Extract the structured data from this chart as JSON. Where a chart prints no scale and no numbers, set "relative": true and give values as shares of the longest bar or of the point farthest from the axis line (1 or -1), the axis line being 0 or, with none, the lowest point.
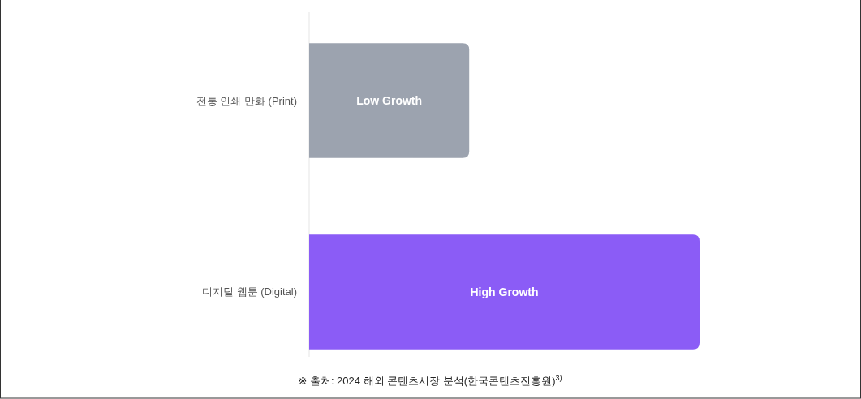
{
  "chart_data": {
    "type": "bar",
    "orientation": "horizontal",
    "relative": true,
    "categories": [
      "전통 인쇄 만화 (Print)",
      "디지털 웹툰 (Digital)"
    ],
    "values": [
      0.41,
      1
    ],
    "colors": [
      "#9ca3af",
      "#8b5cf6"
    ],
    "annotations": [
      "Low Growth",
      "High Growth",
      "※ 출처: 2024 해외 콘텐츠시장 분석(한국콘텐츠진흥원)$^{3)}$"
    ]
  }
}
